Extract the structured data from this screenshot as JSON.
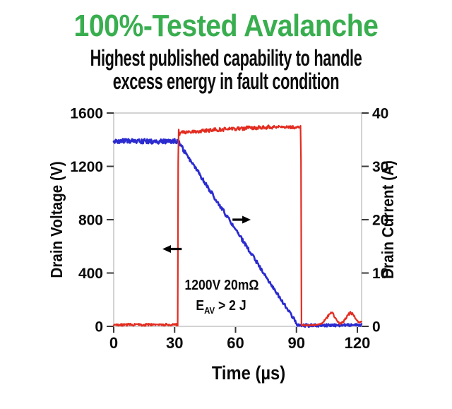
{
  "header": {
    "title": "100%-Tested Avalanche",
    "title_color": "#39ae4f",
    "subtitle_line1": "Highest published capability to handle",
    "subtitle_line2": "excess energy in fault condition"
  },
  "chart_data": {
    "type": "line",
    "title": "100%-Tested Avalanche",
    "xlabel": "Time (µs)",
    "ylabel_left": "Drain Voltage (V)",
    "ylabel_right": "Drain Current (A)",
    "xlim": [
      0,
      122
    ],
    "ylim_left": [
      0,
      1600
    ],
    "ylim_right": [
      0,
      40
    ],
    "x_ticks": [
      0,
      30,
      60,
      90,
      120
    ],
    "left_ticks": [
      0,
      400,
      800,
      1200,
      1600
    ],
    "right_ticks": [
      0,
      10,
      20,
      30,
      40
    ],
    "grid": false,
    "legend": "none",
    "annotation": {
      "line1": "1200V 20mΩ",
      "e": "E",
      "sub": "AV",
      "rest": " > 2 J"
    },
    "colors": {
      "voltage": "#e32c20",
      "current": "#2b2bd0",
      "frame": "#c8c8c8",
      "tick": "#3a3a3a",
      "arrow": "#000000"
    },
    "series": [
      {
        "name": "drain-current",
        "axis": "right",
        "color": "#2b2bd0",
        "unit": "A",
        "description": "Drain current: flat ~35 A until 32 µs, linear avalanche ramp to 0 A at ~91 µs, then ~0",
        "keypoints": [
          [
            0,
            34.7,
            0.45
          ],
          [
            31.7,
            34.7,
            0.45
          ],
          [
            32.5,
            34.2,
            0.4
          ],
          [
            90.8,
            0.15,
            0.3
          ],
          [
            122,
            0.25,
            0.2
          ]
        ]
      },
      {
        "name": "drain-voltage",
        "axis": "left",
        "color": "#e32c20",
        "unit": "V",
        "description": "Drain voltage: ~0 V until 32 µs, avalanche clamp plateau ~1450-1500 V until ~92.5 µs, then ~0 with small ringing bumps ~100 V near 107 and 117 µs",
        "keypoints": [
          [
            0,
            12,
            9
          ],
          [
            31.55,
            12,
            9
          ],
          [
            31.8,
            1530,
            5
          ],
          [
            32.1,
            1445,
            14
          ],
          [
            34,
            1455,
            14
          ],
          [
            45,
            1468,
            15
          ],
          [
            60,
            1483,
            15
          ],
          [
            80,
            1496,
            14
          ],
          [
            92.2,
            1492,
            12
          ],
          [
            92.5,
            8,
            4
          ],
          [
            100,
            10,
            5
          ],
          [
            102.5,
            22,
            6
          ],
          [
            105,
            65,
            9
          ],
          [
            107.3,
            112,
            9
          ],
          [
            109.3,
            60,
            8
          ],
          [
            111.3,
            18,
            6
          ],
          [
            113,
            32,
            7
          ],
          [
            115,
            78,
            9
          ],
          [
            116.5,
            102,
            9
          ],
          [
            118,
            90,
            8
          ],
          [
            119.5,
            48,
            7
          ],
          [
            121,
            28,
            6
          ],
          [
            122,
            40,
            6
          ]
        ]
      }
    ],
    "arrows": [
      {
        "name": "voltage-left-arrow",
        "axis": "left",
        "value": 580,
        "t_from": 33.5,
        "t_to": 24.0
      },
      {
        "name": "current-right-arrow",
        "axis": "right",
        "value": 20,
        "t_from": 58.5,
        "t_to": 67.5
      }
    ]
  }
}
